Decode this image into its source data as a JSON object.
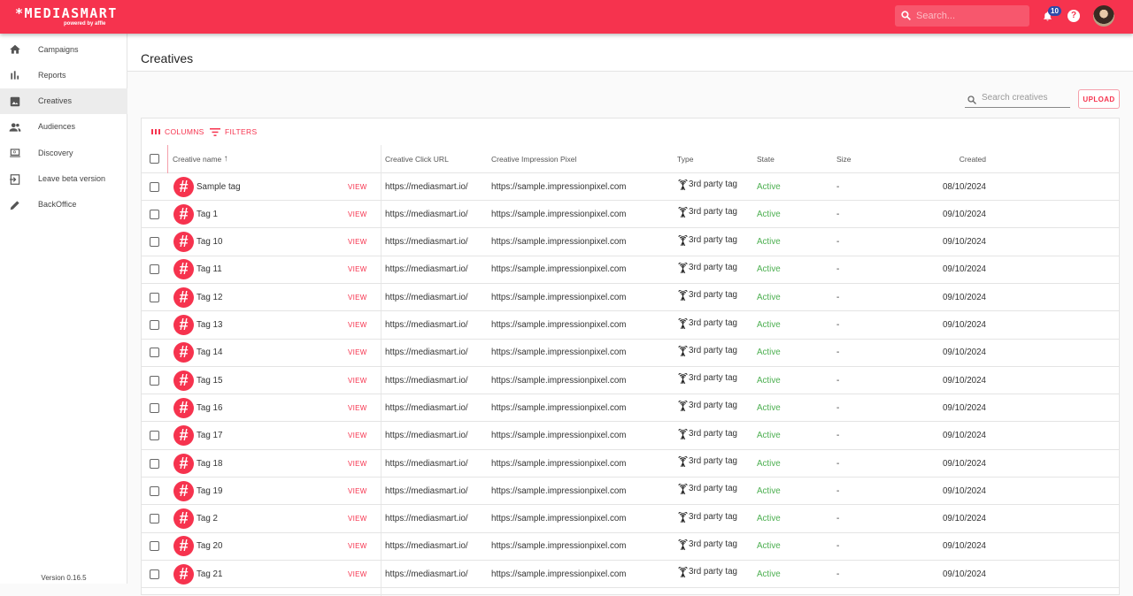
{
  "brand": {
    "logo": "*MEDIASMART",
    "powered_by": "powered by affle",
    "accent": "#f6334e"
  },
  "topbar": {
    "search_placeholder": "Search...",
    "notifications": "10",
    "help": "?"
  },
  "sidebar": {
    "items": [
      {
        "label": "Campaigns",
        "icon": "home-icon"
      },
      {
        "label": "Reports",
        "icon": "bar-chart-icon"
      },
      {
        "label": "Creatives",
        "icon": "image-icon",
        "active": true
      },
      {
        "label": "Audiences",
        "icon": "people-icon"
      },
      {
        "label": "Discovery",
        "icon": "laptop-search-icon"
      },
      {
        "label": "Leave beta version",
        "icon": "exit-icon"
      },
      {
        "label": "BackOffice",
        "icon": "pencil-icon"
      }
    ],
    "version": "Version 0.16.5"
  },
  "page": {
    "title": "Creatives",
    "search_placeholder": "Search creatives",
    "upload": "UPLOAD",
    "columns": "COLUMNS",
    "filters": "FILTERS"
  },
  "table": {
    "headers": {
      "name": "Creative name",
      "click": "Creative Click URL",
      "pixel": "Creative Impression Pixel",
      "type": "Type",
      "state": "State",
      "size": "Size",
      "created": "Created"
    },
    "view_label": "VIEW",
    "rows": [
      {
        "name": "Sample tag",
        "click": "https://mediasmart.io/",
        "pixel": "https://sample.impressionpixel.com",
        "type": "3rd party tag",
        "state": "Active",
        "size": "-",
        "created": "08/10/2024"
      },
      {
        "name": "Tag 1",
        "click": "https://mediasmart.io/",
        "pixel": "https://sample.impressionpixel.com",
        "type": "3rd party tag",
        "state": "Active",
        "size": "-",
        "created": "09/10/2024"
      },
      {
        "name": "Tag 10",
        "click": "https://mediasmart.io/",
        "pixel": "https://sample.impressionpixel.com",
        "type": "3rd party tag",
        "state": "Active",
        "size": "-",
        "created": "09/10/2024"
      },
      {
        "name": "Tag 11",
        "click": "https://mediasmart.io/",
        "pixel": "https://sample.impressionpixel.com",
        "type": "3rd party tag",
        "state": "Active",
        "size": "-",
        "created": "09/10/2024"
      },
      {
        "name": "Tag 12",
        "click": "https://mediasmart.io/",
        "pixel": "https://sample.impressionpixel.com",
        "type": "3rd party tag",
        "state": "Active",
        "size": "-",
        "created": "09/10/2024"
      },
      {
        "name": "Tag 13",
        "click": "https://mediasmart.io/",
        "pixel": "https://sample.impressionpixel.com",
        "type": "3rd party tag",
        "state": "Active",
        "size": "-",
        "created": "09/10/2024"
      },
      {
        "name": "Tag 14",
        "click": "https://mediasmart.io/",
        "pixel": "https://sample.impressionpixel.com",
        "type": "3rd party tag",
        "state": "Active",
        "size": "-",
        "created": "09/10/2024"
      },
      {
        "name": "Tag 15",
        "click": "https://mediasmart.io/",
        "pixel": "https://sample.impressionpixel.com",
        "type": "3rd party tag",
        "state": "Active",
        "size": "-",
        "created": "09/10/2024"
      },
      {
        "name": "Tag 16",
        "click": "https://mediasmart.io/",
        "pixel": "https://sample.impressionpixel.com",
        "type": "3rd party tag",
        "state": "Active",
        "size": "-",
        "created": "09/10/2024"
      },
      {
        "name": "Tag 17",
        "click": "https://mediasmart.io/",
        "pixel": "https://sample.impressionpixel.com",
        "type": "3rd party tag",
        "state": "Active",
        "size": "-",
        "created": "09/10/2024"
      },
      {
        "name": "Tag 18",
        "click": "https://mediasmart.io/",
        "pixel": "https://sample.impressionpixel.com",
        "type": "3rd party tag",
        "state": "Active",
        "size": "-",
        "created": "09/10/2024"
      },
      {
        "name": "Tag 19",
        "click": "https://mediasmart.io/",
        "pixel": "https://sample.impressionpixel.com",
        "type": "3rd party tag",
        "state": "Active",
        "size": "-",
        "created": "09/10/2024"
      },
      {
        "name": "Tag 2",
        "click": "https://mediasmart.io/",
        "pixel": "https://sample.impressionpixel.com",
        "type": "3rd party tag",
        "state": "Active",
        "size": "-",
        "created": "09/10/2024"
      },
      {
        "name": "Tag 20",
        "click": "https://mediasmart.io/",
        "pixel": "https://sample.impressionpixel.com",
        "type": "3rd party tag",
        "state": "Active",
        "size": "-",
        "created": "09/10/2024"
      },
      {
        "name": "Tag 21",
        "click": "https://mediasmart.io/",
        "pixel": "https://sample.impressionpixel.com",
        "type": "3rd party tag",
        "state": "Active",
        "size": "-",
        "created": "09/10/2024"
      }
    ]
  }
}
